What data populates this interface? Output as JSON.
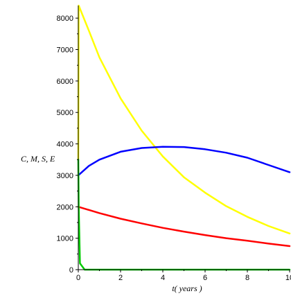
{
  "chart_data": {
    "type": "line",
    "title": "",
    "xlabel": "t( years )",
    "ylabel": "C, M, S, E",
    "xlim": [
      0,
      10
    ],
    "ylim": [
      0,
      8400
    ],
    "x_ticks": [
      0,
      2,
      4,
      6,
      8,
      10
    ],
    "x_tick_labels": [
      "0",
      "2",
      "4",
      "6",
      "8",
      "10"
    ],
    "y_ticks": [
      0,
      1000,
      2000,
      3000,
      4000,
      5000,
      6000,
      7000,
      8000
    ],
    "y_tick_labels": [
      "0",
      "1000",
      "2000",
      "3000",
      "4000",
      "5000",
      "6000",
      "7000",
      "8000"
    ],
    "grid": false,
    "legend": "none",
    "series": [
      {
        "color": "#ffff00",
        "x": [
          0,
          0.02,
          0.5,
          1,
          2,
          3,
          4,
          5,
          6,
          7,
          8,
          9,
          10
        ],
        "y": [
          3500,
          8400,
          7600,
          6750,
          5450,
          4420,
          3600,
          2940,
          2450,
          2020,
          1680,
          1390,
          1150
        ]
      },
      {
        "color": "#0000ff",
        "x": [
          0,
          0.5,
          1,
          2,
          3,
          4,
          5,
          6,
          7,
          8,
          9,
          10
        ],
        "y": [
          3000,
          3300,
          3500,
          3750,
          3870,
          3910,
          3900,
          3830,
          3720,
          3560,
          3330,
          3100
        ]
      },
      {
        "color": "#ff0000",
        "x": [
          0,
          1,
          2,
          3,
          4,
          5,
          6,
          7,
          8,
          9,
          10
        ],
        "y": [
          2000,
          1800,
          1620,
          1470,
          1330,
          1210,
          1100,
          1000,
          920,
          830,
          750
        ]
      },
      {
        "color": "#00cc00",
        "x": [
          0,
          0.02,
          0.08,
          0.3,
          1,
          10
        ],
        "y": [
          3500,
          2000,
          200,
          0,
          0,
          0
        ]
      }
    ]
  }
}
